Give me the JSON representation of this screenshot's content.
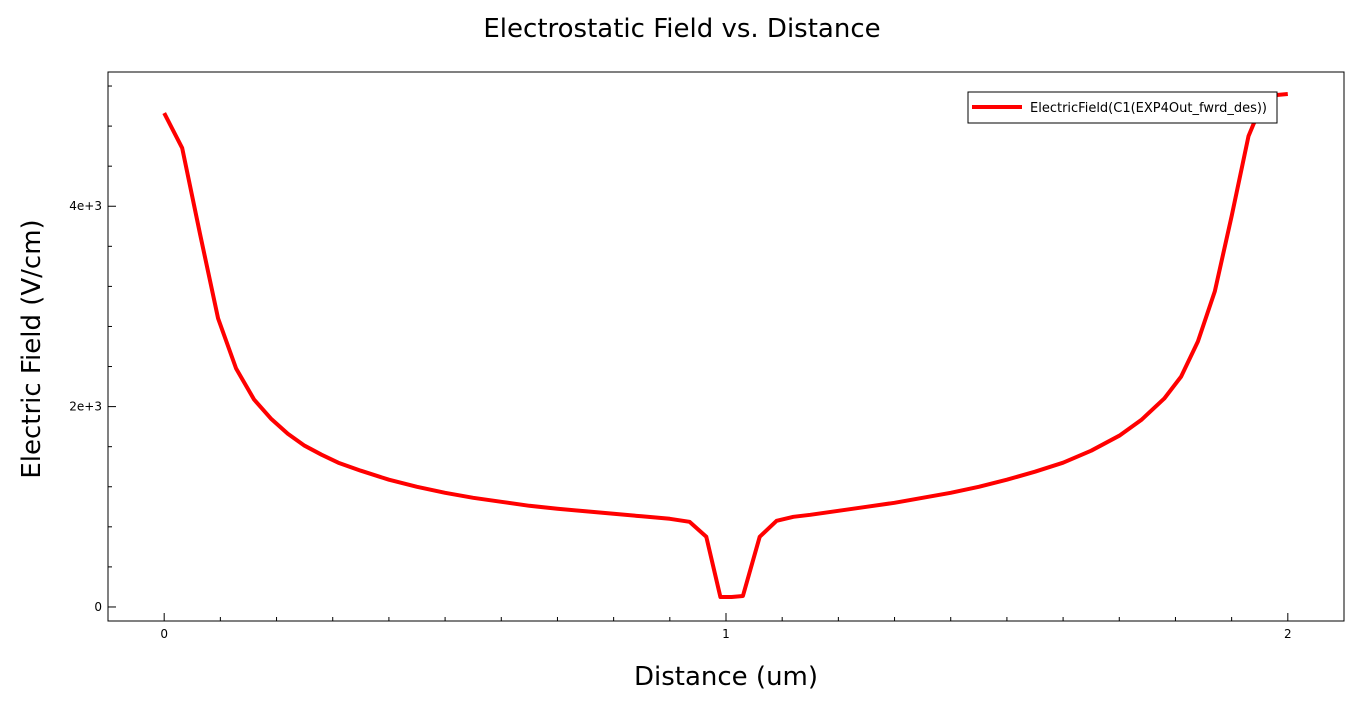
{
  "chart_data": {
    "type": "line",
    "title": "Electrostatic Field vs. Distance",
    "xlabel": "Distance (um)",
    "ylabel": "Electric Field (V/cm)",
    "xlim": [
      -0.1,
      2.1
    ],
    "ylim": [
      -140,
      5340
    ],
    "x_ticks": [
      {
        "value": 0,
        "label": "0"
      },
      {
        "value": 1,
        "label": "1"
      },
      {
        "value": 2,
        "label": "2"
      }
    ],
    "y_ticks": [
      {
        "value": 0,
        "label": "0"
      },
      {
        "value": 2000,
        "label": "2e+3"
      },
      {
        "value": 4000,
        "label": "4e+3"
      }
    ],
    "grid": false,
    "legend_position": "top-right",
    "series": [
      {
        "name": "ElectricField(C1(EXP4Out_fwrd_des))",
        "color": "#ff0000",
        "x": [
          0,
          0.032,
          0.064,
          0.096,
          0.128,
          0.16,
          0.19,
          0.22,
          0.25,
          0.28,
          0.31,
          0.35,
          0.4,
          0.45,
          0.5,
          0.55,
          0.6,
          0.65,
          0.7,
          0.75,
          0.8,
          0.85,
          0.9,
          0.935,
          0.965,
          0.99,
          1.01,
          1.03,
          1.06,
          1.09,
          1.12,
          1.15,
          1.2,
          1.25,
          1.3,
          1.35,
          1.4,
          1.45,
          1.5,
          1.55,
          1.6,
          1.65,
          1.7,
          1.74,
          1.78,
          1.81,
          1.84,
          1.87,
          1.9,
          1.93,
          1.96,
          2.0
        ],
        "y": [
          4930,
          4580,
          3720,
          2880,
          2380,
          2070,
          1880,
          1730,
          1610,
          1520,
          1440,
          1360,
          1270,
          1200,
          1140,
          1090,
          1050,
          1010,
          980,
          955,
          930,
          905,
          880,
          850,
          700,
          100,
          100,
          110,
          700,
          860,
          900,
          920,
          960,
          1000,
          1040,
          1090,
          1140,
          1200,
          1270,
          1350,
          1440,
          1560,
          1710,
          1870,
          2080,
          2300,
          2650,
          3150,
          3900,
          4700,
          5100,
          5120
        ]
      }
    ]
  },
  "colors": {
    "series": "#ff0000",
    "background": "#ffffff",
    "axes": "#000000"
  }
}
